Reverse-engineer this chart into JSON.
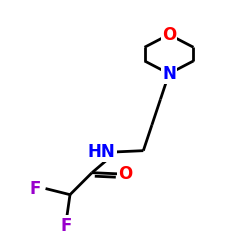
{
  "background_color": "#ffffff",
  "atom_colors": {
    "C": "#000000",
    "N": "#0000ff",
    "O": "#ff0000",
    "F": "#9900cc",
    "H": "#000000"
  },
  "bond_color": "#000000",
  "bond_width": 2.0,
  "figsize": [
    2.5,
    2.5
  ],
  "dpi": 100,
  "xlim": [
    0,
    10
  ],
  "ylim": [
    0,
    10
  ]
}
